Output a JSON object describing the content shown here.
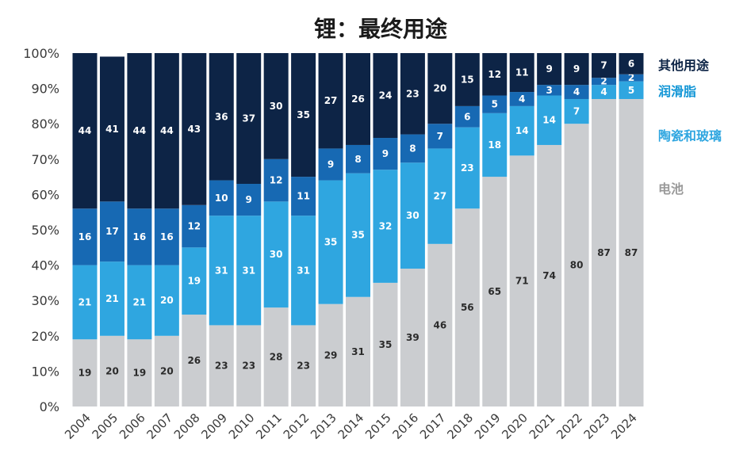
{
  "chart_data": {
    "type": "bar",
    "stacked": true,
    "title": "锂：最终用途",
    "xlabel": "",
    "ylabel": "",
    "ylim": [
      0,
      100
    ],
    "y_ticks": [
      "0%",
      "10%",
      "20%",
      "30%",
      "40%",
      "50%",
      "60%",
      "70%",
      "80%",
      "90%",
      "100%"
    ],
    "grid": false,
    "legend_position": "right",
    "categories": [
      "2004",
      "2005",
      "2006",
      "2007",
      "2008",
      "2009",
      "2010",
      "2011",
      "2012",
      "2013",
      "2014",
      "2015",
      "2016",
      "2017",
      "2018",
      "2019",
      "2020",
      "2021",
      "2022",
      "2023",
      "2024"
    ],
    "series": [
      {
        "name": "电池",
        "color": "#cbcdd0",
        "label_color": "#2b2b2b",
        "values": [
          19,
          20,
          19,
          20,
          26,
          23,
          23,
          28,
          23,
          29,
          31,
          35,
          39,
          46,
          56,
          65,
          71,
          74,
          80,
          87,
          87
        ]
      },
      {
        "name": "陶瓷和玻璃",
        "color": "#2fa6e0",
        "label_color": "#ffffff",
        "values": [
          21,
          21,
          21,
          20,
          19,
          31,
          31,
          30,
          31,
          35,
          35,
          32,
          30,
          27,
          23,
          18,
          14,
          14,
          7,
          4,
          5
        ]
      },
      {
        "name": "润滑脂",
        "color": "#1769b3",
        "label_color": "#ffffff",
        "values": [
          16,
          17,
          16,
          16,
          12,
          10,
          9,
          12,
          11,
          9,
          8,
          9,
          8,
          7,
          6,
          5,
          4,
          3,
          4,
          2,
          2
        ]
      },
      {
        "name": "其他用途",
        "color": "#0d2446",
        "label_color": "#ffffff",
        "values": [
          44,
          41,
          44,
          44,
          43,
          36,
          37,
          30,
          35,
          27,
          26,
          24,
          23,
          20,
          15,
          12,
          11,
          9,
          9,
          7,
          6
        ]
      }
    ],
    "legend": [
      {
        "label": "其他用途",
        "color": "#0d2446"
      },
      {
        "label": "润滑脂",
        "color": "#1296d6"
      },
      {
        "label": "陶瓷和玻璃",
        "color": "#2fa6e0"
      },
      {
        "label": "电池",
        "color": "#9a9a9a"
      }
    ]
  }
}
